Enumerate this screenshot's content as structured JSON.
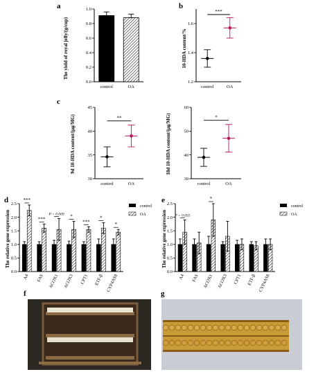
{
  "panels": {
    "a": {
      "letter": "a",
      "ylabel": "The yield of royal jelly/(g/cup)"
    },
    "b": {
      "letter": "b",
      "ylabel": "10-HDA content/%"
    },
    "c1": {
      "letter": "c",
      "ylabel": "9d 10-HDA content/(µg/MG)"
    },
    "c2": {
      "letter": "",
      "ylabel": "18d 10-HDA content/(µg/MG)"
    },
    "d": {
      "letter": "d",
      "ylabel": "The relative gene expression"
    },
    "e": {
      "letter": "e",
      "ylabel": "The relative gene expression"
    },
    "f": {
      "letter": "f"
    },
    "g": {
      "letter": "g"
    }
  },
  "legend": {
    "control": "control",
    "oa": "OA"
  },
  "colors": {
    "control": "#000000",
    "oa_point": "#b5175a",
    "bar_edge": "#000000"
  },
  "chart_data": [
    {
      "id": "a",
      "type": "bar",
      "categories": [
        "control",
        "OA"
      ],
      "values": [
        0.91,
        0.88
      ],
      "errors": [
        0.05,
        0.05
      ],
      "ylim": [
        0.0,
        1.0
      ],
      "yticks": [
        "0.0",
        "0.2",
        "0.4",
        "0.6",
        "0.8",
        "1.0"
      ],
      "ylabel": "The yield of royal jelly/(g/cup)"
    },
    {
      "id": "b",
      "type": "scatter",
      "categories": [
        "control",
        "OA"
      ],
      "values": [
        1.36,
        1.57
      ],
      "errors": [
        0.06,
        0.07
      ],
      "ylim": [
        1.2,
        1.7
      ],
      "yticks": [
        "1.2",
        "1.4",
        "1.6"
      ],
      "significance": "***",
      "ylabel": "10-HDA content/%"
    },
    {
      "id": "c1",
      "type": "scatter",
      "categories": [
        "control",
        "OA"
      ],
      "values": [
        34.6,
        39.0
      ],
      "errors": [
        2.1,
        2.3
      ],
      "ylim": [
        30,
        45
      ],
      "yticks": [
        "30",
        "35",
        "40",
        "45"
      ],
      "significance": "**",
      "ylabel": "9d 10-HDA content/(µg/MG)"
    },
    {
      "id": "c2",
      "type": "scatter",
      "categories": [
        "control",
        "OA"
      ],
      "values": [
        39.0,
        47.0
      ],
      "errors": [
        3.8,
        5.8
      ],
      "ylim": [
        30,
        60
      ],
      "yticks": [
        "30",
        "40",
        "50",
        "60"
      ],
      "significance": "*",
      "ylabel": "18d 10-HDA content/(µg/MG)"
    },
    {
      "id": "d",
      "type": "bar",
      "categories": [
        "A4",
        "FAS",
        "ACOX1",
        "ACOX3",
        "CPT1",
        "ETF-β",
        "CYP4AS8"
      ],
      "series": [
        {
          "name": "control",
          "values": [
            1.0,
            1.0,
            1.0,
            1.0,
            1.0,
            1.0,
            1.0
          ],
          "errors": [
            0.1,
            0.1,
            0.15,
            0.12,
            0.1,
            0.2,
            0.2
          ]
        },
        {
          "name": "OA",
          "values": [
            2.25,
            1.6,
            1.55,
            1.55,
            1.55,
            1.6,
            1.45
          ],
          "errors": [
            0.2,
            0.15,
            0.4,
            0.3,
            0.1,
            0.2,
            0.1
          ]
        }
      ],
      "significance": [
        "***",
        "***",
        "P = 0.069",
        "*",
        "***",
        "*",
        "*"
      ],
      "ylim": [
        0,
        2.5
      ],
      "yticks": [
        "0.0",
        "0.5",
        "1.0",
        "1.5",
        "2.0",
        "2.5"
      ],
      "ylabel": "The relative gene expression"
    },
    {
      "id": "e",
      "type": "bar",
      "categories": [
        "A4",
        "FAS",
        "ACOX1",
        "ACOX3",
        "CPT1",
        "ETF-β",
        "CYP4AS8"
      ],
      "series": [
        {
          "name": "control",
          "values": [
            1.0,
            1.0,
            1.0,
            1.0,
            1.0,
            1.0,
            1.0
          ],
          "errors": [
            0.2,
            0.2,
            0.3,
            0.1,
            0.15,
            0.1,
            0.2
          ]
        },
        {
          "name": "OA",
          "values": [
            1.45,
            1.05,
            1.9,
            1.3,
            1.0,
            0.95,
            1.0
          ],
          "errors": [
            0.45,
            0.4,
            0.6,
            0.55,
            0.2,
            0.15,
            0.2
          ]
        }
      ],
      "significance": [
        "P = 0.055",
        "",
        "*",
        "",
        "",
        "",
        ""
      ],
      "ylim": [
        0,
        2.5
      ],
      "yticks": [
        "0.0",
        "0.5",
        "1.0",
        "1.5",
        "2.0",
        "2.5"
      ],
      "ylabel": "The relative gene expression"
    }
  ]
}
